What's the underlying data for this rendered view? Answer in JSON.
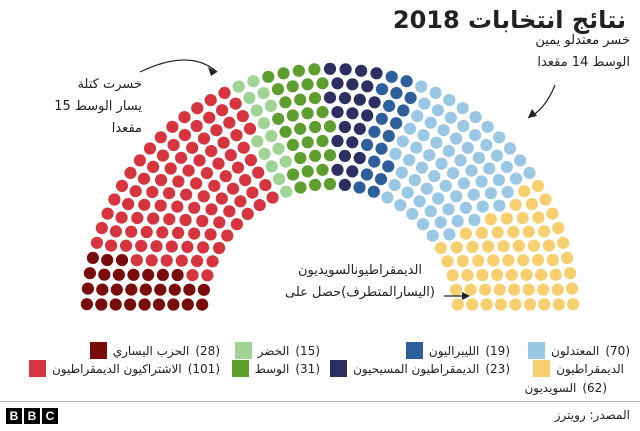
{
  "title": "نتائج انتخابات 2018",
  "annotations": {
    "left": [
      "خسرت كتلة",
      "يسار الوسط 15",
      "مقعدا"
    ],
    "right": [
      "خسر معتدلو يمين",
      "الوسط 14 مقعدا"
    ],
    "bottom": [
      "الديمقراطيونالسويديون",
      "(اليسارالمتطرف)حصل على"
    ]
  },
  "chart_data": {
    "type": "parliament",
    "title": "نتائج انتخابات 2018",
    "total_seats": 349,
    "parties": [
      {
        "label": "الحزب اليساري",
        "seats": 28,
        "color": "#7a0b0b"
      },
      {
        "label": "الاشتراكيون الديمقراطيون",
        "seats": 101,
        "color": "#d6343e"
      },
      {
        "label": "الخضر",
        "seats": 15,
        "color": "#9fd494"
      },
      {
        "label": "الوسط",
        "seats": 31,
        "color": "#5d9e2f"
      },
      {
        "label": "المسيحيون الديمقراطيون",
        "seats": 23,
        "color": "#2d2f63"
      },
      {
        "label": "الليبراليون",
        "seats": 19,
        "color": "#2f5f9b"
      },
      {
        "label": "المعتدلون",
        "seats": 70,
        "color": "#9ac7e4"
      },
      {
        "label": "الديمقراطيون السويديون",
        "seats": 62,
        "color": "#f7cf6e"
      }
    ]
  },
  "legend": [
    {
      "label": "الحزب اليساري",
      "count": "(28)",
      "color": "#7a0b0b"
    },
    {
      "label": "الاشتراكيون الديمقراطيون",
      "count": "(101)",
      "color": "#d6343e"
    },
    {
      "label": "الخضر",
      "count": "(15)",
      "color": "#9fd494"
    },
    {
      "label": "الوسط",
      "count": "(31)",
      "color": "#5d9e2f"
    },
    {
      "label": "الليبراليون",
      "count": "(19)",
      "color": "#2f5f9b"
    },
    {
      "label": "الديمقراطيون المسيحيون",
      "count": "(23)",
      "color": "#2d2f63"
    },
    {
      "label": "المعتدلون",
      "count": "(70)",
      "color": "#9ac7e4"
    },
    {
      "label": "الديمقراطيون",
      "count": "",
      "color": "#f7cf6e"
    },
    {
      "label": "السويديون",
      "count": "(62)",
      "color": ""
    }
  ],
  "footer": {
    "brand": [
      "B",
      "B",
      "C"
    ],
    "source": "المصدر: رويترز"
  }
}
